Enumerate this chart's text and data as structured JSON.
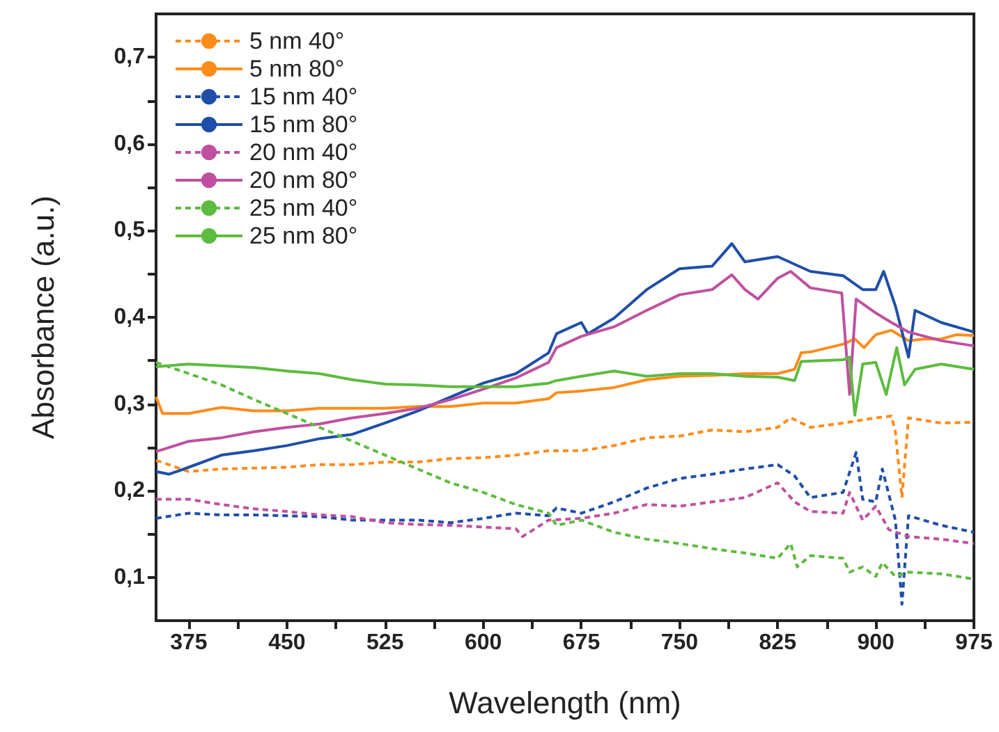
{
  "chart_data": {
    "type": "line",
    "xlabel": "Wavelength (nm)",
    "ylabel": "Absorbance (a.u.)",
    "xlim": [
      350,
      975
    ],
    "ylim": [
      0.05,
      0.75
    ],
    "xticks": [
      {
        "value": 375,
        "label": "375"
      },
      {
        "value": 412.5,
        "label": null
      },
      {
        "value": 450,
        "label": "450"
      },
      {
        "value": 487.5,
        "label": null
      },
      {
        "value": 525,
        "label": "525"
      },
      {
        "value": 562.5,
        "label": null
      },
      {
        "value": 600,
        "label": "600"
      },
      {
        "value": 637.5,
        "label": null
      },
      {
        "value": 675,
        "label": "675"
      },
      {
        "value": 712.5,
        "label": null
      },
      {
        "value": 750,
        "label": "750"
      },
      {
        "value": 787.5,
        "label": null
      },
      {
        "value": 825,
        "label": "825"
      },
      {
        "value": 862.5,
        "label": null
      },
      {
        "value": 900,
        "label": "900"
      },
      {
        "value": 937.5,
        "label": null
      },
      {
        "value": 975,
        "label": "975"
      }
    ],
    "yticks": [
      {
        "value": 0.1,
        "label": "0,1"
      },
      {
        "value": 0.15,
        "label": null
      },
      {
        "value": 0.2,
        "label": "0,2"
      },
      {
        "value": 0.25,
        "label": null
      },
      {
        "value": 0.3,
        "label": "0,3"
      },
      {
        "value": 0.35,
        "label": null
      },
      {
        "value": 0.4,
        "label": "0,4"
      },
      {
        "value": 0.45,
        "label": null
      },
      {
        "value": 0.5,
        "label": "0,5"
      },
      {
        "value": 0.55,
        "label": null
      },
      {
        "value": 0.6,
        "label": "0,6"
      },
      {
        "value": 0.65,
        "label": null
      },
      {
        "value": 0.7,
        "label": "0,7"
      }
    ],
    "grid": false,
    "legend": "top left",
    "marker": "none",
    "series": [
      {
        "name": "5 nm 40°",
        "color": "#ff8c1a",
        "line_style": "dashed",
        "x": [
          350,
          375,
          400,
          425,
          450,
          475,
          500,
          525,
          550,
          575,
          600,
          625,
          650,
          675,
          700,
          725,
          750,
          775,
          800,
          825,
          835,
          850,
          875,
          900,
          912,
          915,
          920,
          925,
          950,
          975
        ],
        "values": [
          0.235,
          0.222,
          0.225,
          0.226,
          0.227,
          0.23,
          0.23,
          0.233,
          0.233,
          0.237,
          0.238,
          0.241,
          0.246,
          0.246,
          0.252,
          0.261,
          0.263,
          0.27,
          0.268,
          0.273,
          0.284,
          0.273,
          0.278,
          0.284,
          0.286,
          0.268,
          0.192,
          0.284,
          0.278,
          0.279
        ]
      },
      {
        "name": "5 nm 80°",
        "color": "#ff8c1a",
        "line_style": "solid",
        "x": [
          350,
          355,
          375,
          400,
          425,
          450,
          475,
          500,
          525,
          550,
          575,
          600,
          625,
          650,
          656,
          675,
          700,
          725,
          750,
          775,
          800,
          825,
          838,
          843,
          850,
          875,
          884,
          891,
          900,
          912,
          925,
          937,
          950,
          962,
          975
        ],
        "values": [
          0.308,
          0.289,
          0.289,
          0.296,
          0.292,
          0.292,
          0.295,
          0.295,
          0.295,
          0.297,
          0.297,
          0.301,
          0.301,
          0.306,
          0.313,
          0.315,
          0.319,
          0.328,
          0.332,
          0.333,
          0.335,
          0.335,
          0.34,
          0.359,
          0.36,
          0.369,
          0.375,
          0.365,
          0.38,
          0.385,
          0.373,
          0.375,
          0.375,
          0.38,
          0.379
        ]
      },
      {
        "name": "15 nm 40°",
        "color": "#1f4ea8",
        "line_style": "dashed",
        "x": [
          350,
          375,
          400,
          425,
          450,
          475,
          500,
          525,
          550,
          575,
          600,
          625,
          650,
          656,
          675,
          700,
          725,
          750,
          775,
          800,
          825,
          838,
          850,
          875,
          885,
          890,
          900,
          905,
          915,
          920,
          925,
          950,
          975
        ],
        "values": [
          0.168,
          0.174,
          0.172,
          0.172,
          0.171,
          0.17,
          0.166,
          0.166,
          0.166,
          0.163,
          0.168,
          0.174,
          0.171,
          0.18,
          0.174,
          0.187,
          0.203,
          0.214,
          0.219,
          0.225,
          0.23,
          0.217,
          0.192,
          0.198,
          0.244,
          0.19,
          0.187,
          0.225,
          0.166,
          0.069,
          0.171,
          0.16,
          0.152
        ]
      },
      {
        "name": "15 nm 80°",
        "color": "#1f4ea8",
        "line_style": "solid",
        "x": [
          350,
          360,
          375,
          400,
          425,
          450,
          475,
          500,
          525,
          550,
          575,
          600,
          625,
          650,
          656,
          675,
          680,
          700,
          725,
          750,
          775,
          790,
          800,
          825,
          850,
          875,
          890,
          900,
          906,
          915,
          925,
          930,
          950,
          975
        ],
        "values": [
          0.222,
          0.219,
          0.227,
          0.241,
          0.246,
          0.252,
          0.26,
          0.265,
          0.278,
          0.292,
          0.308,
          0.324,
          0.335,
          0.359,
          0.381,
          0.394,
          0.381,
          0.399,
          0.432,
          0.456,
          0.459,
          0.485,
          0.464,
          0.47,
          0.453,
          0.448,
          0.432,
          0.432,
          0.453,
          0.413,
          0.354,
          0.408,
          0.394,
          0.383
        ]
      },
      {
        "name": "20 nm 40°",
        "color": "#c0509f",
        "line_style": "dashed",
        "x": [
          350,
          375,
          400,
          425,
          450,
          475,
          500,
          525,
          550,
          575,
          600,
          625,
          630,
          650,
          675,
          700,
          725,
          750,
          775,
          800,
          825,
          838,
          850,
          875,
          880,
          890,
          900,
          910,
          925,
          950,
          975
        ],
        "values": [
          0.19,
          0.19,
          0.184,
          0.179,
          0.176,
          0.172,
          0.17,
          0.163,
          0.161,
          0.16,
          0.158,
          0.156,
          0.147,
          0.166,
          0.168,
          0.174,
          0.184,
          0.182,
          0.187,
          0.192,
          0.209,
          0.187,
          0.176,
          0.174,
          0.198,
          0.166,
          0.182,
          0.155,
          0.147,
          0.144,
          0.139
        ]
      },
      {
        "name": "20 nm 80°",
        "color": "#c0509f",
        "line_style": "solid",
        "x": [
          350,
          375,
          400,
          425,
          450,
          475,
          500,
          525,
          550,
          575,
          600,
          625,
          650,
          656,
          675,
          700,
          725,
          750,
          775,
          790,
          800,
          810,
          825,
          835,
          850,
          874,
          880,
          885,
          900,
          912,
          925,
          950,
          975
        ],
        "values": [
          0.245,
          0.257,
          0.261,
          0.268,
          0.273,
          0.277,
          0.284,
          0.289,
          0.295,
          0.305,
          0.317,
          0.33,
          0.348,
          0.365,
          0.378,
          0.389,
          0.408,
          0.426,
          0.432,
          0.449,
          0.432,
          0.421,
          0.445,
          0.453,
          0.434,
          0.428,
          0.311,
          0.421,
          0.405,
          0.394,
          0.383,
          0.373,
          0.367
        ]
      },
      {
        "name": "25 nm 40°",
        "color": "#5dbb3f",
        "line_style": "dashed",
        "x": [
          350,
          375,
          400,
          425,
          450,
          475,
          500,
          525,
          550,
          575,
          600,
          625,
          650,
          656,
          675,
          700,
          725,
          750,
          775,
          800,
          825,
          835,
          840,
          850,
          875,
          880,
          890,
          900,
          905,
          915,
          925,
          950,
          975
        ],
        "values": [
          0.348,
          0.335,
          0.322,
          0.305,
          0.289,
          0.273,
          0.257,
          0.241,
          0.225,
          0.209,
          0.198,
          0.184,
          0.174,
          0.16,
          0.166,
          0.152,
          0.144,
          0.139,
          0.133,
          0.128,
          0.122,
          0.139,
          0.112,
          0.125,
          0.122,
          0.106,
          0.112,
          0.101,
          0.117,
          0.101,
          0.106,
          0.104,
          0.098
        ]
      },
      {
        "name": "25 nm 80°",
        "color": "#5dbb3f",
        "line_style": "solid",
        "x": [
          350,
          375,
          400,
          425,
          450,
          475,
          500,
          525,
          550,
          575,
          600,
          625,
          650,
          656,
          675,
          700,
          725,
          750,
          775,
          800,
          825,
          838,
          843,
          875,
          880,
          884,
          890,
          900,
          908,
          916,
          922,
          930,
          950,
          975
        ],
        "values": [
          0.343,
          0.346,
          0.344,
          0.342,
          0.338,
          0.335,
          0.328,
          0.323,
          0.322,
          0.32,
          0.32,
          0.32,
          0.324,
          0.327,
          0.332,
          0.338,
          0.332,
          0.335,
          0.335,
          0.332,
          0.331,
          0.327,
          0.349,
          0.351,
          0.354,
          0.287,
          0.346,
          0.348,
          0.311,
          0.365,
          0.322,
          0.34,
          0.346,
          0.34
        ]
      }
    ]
  }
}
